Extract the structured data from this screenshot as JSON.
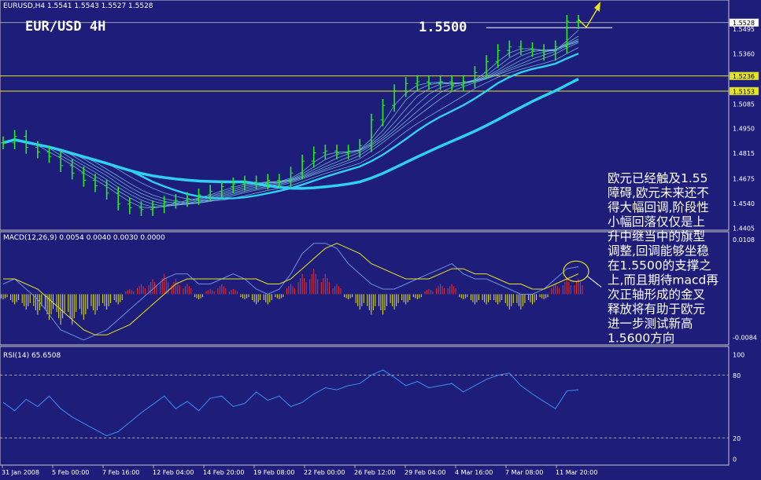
{
  "chart_data": [
    {
      "type": "line",
      "panel": "price",
      "header": "EURUSD,H4  1.5541 1.5543 1.5527 1.5528",
      "title": "EUR/USD 4H",
      "level_label": "1.5500",
      "y_ticks": [
        "1.5528",
        "1.5495",
        "1.5360",
        "1.5236",
        "1.5153",
        "1.5085",
        "1.4950",
        "1.4815",
        "1.4675",
        "1.4540",
        "1.4405"
      ],
      "highlighted_levels": [
        1.5236,
        1.5153
      ],
      "current_price_label": "1.5528",
      "ylim": [
        1.4405,
        1.56
      ],
      "x_ticks": [
        "31 Jan 2008",
        "5 Feb 00:00",
        "7 Feb 16:00",
        "12 Feb 04:00",
        "14 Feb 20:00",
        "19 Feb 08:00",
        "22 Feb 00:00",
        "26 Feb 12:00",
        "29 Feb 04:00",
        "4 Mar 16:00",
        "7 Mar 08:00",
        "11 Mar 20:00"
      ],
      "series": [
        {
          "values": [
            1.487,
            1.4905,
            1.4845,
            1.482,
            1.4795,
            1.4745,
            1.4705,
            1.4665,
            1.4635,
            1.4595,
            1.4535,
            1.4515,
            1.4505,
            1.452,
            1.4545,
            1.4555,
            1.4565,
            1.4585,
            1.4605,
            1.463,
            1.4645,
            1.4655,
            1.465,
            1.4665,
            1.466,
            1.4705,
            1.477,
            1.4815,
            1.4825,
            1.4815,
            1.4825,
            1.4855,
            1.4995,
            1.5075,
            1.5155,
            1.5195,
            1.5205,
            1.5195,
            1.5205,
            1.5185,
            1.5205,
            1.5255,
            1.5315,
            1.5375,
            1.5395,
            1.5385,
            1.5375,
            1.5355,
            1.5395,
            1.5535,
            1.5528
          ]
        }
      ],
      "annotation": "欧元已经触及1.55障碍,欧元未来还不得大幅回调,阶段性小幅回落仅仅是上升中继当中的旗型调整,回调能够坐稳在1.5500的支撑之上,而且期待macd再次正轴形成的金叉释放将有助于欧元进一步测试新高1.5600方向",
      "annotation_lines": [
        "欧元已经触及1.55",
        "障碍,欧元未来还不",
        "得大幅回调,阶段性",
        "小幅回落仅仅是上",
        "升中继当中的旗型",
        "调整,回调能够坐稳",
        "在1.5500的支撑之",
        "上,而且期待macd再",
        "次正轴形成的金叉",
        "释放将有助于欧元",
        "进一步测试新高",
        "1.5600方向"
      ]
    },
    {
      "type": "bar",
      "panel": "macd",
      "header": "MACD(12,26,9) 0.0054 0.0040 0.0030 0.0000",
      "y_ticks": [
        "0.0108",
        "-0.0084"
      ],
      "histogram": [
        -0.001,
        -0.002,
        -0.003,
        -0.004,
        -0.005,
        -0.006,
        -0.006,
        -0.005,
        -0.004,
        -0.003,
        -0.002,
        0.001,
        0.002,
        0.003,
        0.004,
        0.003,
        0.002,
        -0.001,
        0.001,
        0.002,
        0.001,
        -0.001,
        -0.002,
        -0.002,
        -0.001,
        0.002,
        0.004,
        0.005,
        0.004,
        0.002,
        -0.001,
        -0.003,
        -0.004,
        -0.004,
        -0.003,
        -0.002,
        -0.001,
        0.001,
        0.002,
        0.002,
        -0.001,
        -0.002,
        -0.002,
        -0.002,
        -0.003,
        -0.003,
        -0.002,
        -0.001,
        0.002,
        0.003,
        0.003
      ],
      "macd_line": [
        0.002,
        0.003,
        0.001,
        -0.001,
        -0.004,
        -0.007,
        -0.008,
        -0.009,
        -0.008,
        -0.007,
        -0.005,
        -0.003,
        -0.001,
        0.001,
        0.003,
        0.004,
        0.004,
        0.002,
        0.002,
        0.003,
        0.004,
        0.003,
        0.001,
        0.0,
        0.001,
        0.004,
        0.008,
        0.01,
        0.01,
        0.009,
        0.006,
        0.004,
        0.002,
        0.001,
        0.001,
        0.002,
        0.003,
        0.004,
        0.005,
        0.006,
        0.004,
        0.003,
        0.003,
        0.002,
        0.001,
        0.0,
        0.0,
        0.001,
        0.003,
        0.005,
        0.0054
      ],
      "signal_line": [
        0.003,
        0.003,
        0.002,
        0.001,
        -0.001,
        -0.003,
        -0.005,
        -0.007,
        -0.008,
        -0.008,
        -0.007,
        -0.006,
        -0.004,
        -0.002,
        0.0,
        0.002,
        0.003,
        0.003,
        0.003,
        0.003,
        0.003,
        0.003,
        0.003,
        0.002,
        0.002,
        0.003,
        0.005,
        0.007,
        0.009,
        0.01,
        0.009,
        0.008,
        0.006,
        0.005,
        0.004,
        0.003,
        0.003,
        0.003,
        0.004,
        0.005,
        0.005,
        0.004,
        0.004,
        0.003,
        0.002,
        0.002,
        0.001,
        0.001,
        0.002,
        0.003,
        0.004
      ],
      "ylim": [
        -0.0095,
        0.0115
      ]
    },
    {
      "type": "line",
      "panel": "rsi",
      "header": "RSI(14) 65.6508",
      "y_ticks": [
        "100",
        "80",
        "20",
        "0"
      ],
      "levels": [
        80,
        20
      ],
      "ylim": [
        0,
        100
      ],
      "values": [
        54,
        46,
        57,
        50,
        60,
        48,
        40,
        34,
        28,
        22,
        26,
        35,
        44,
        52,
        60,
        48,
        55,
        46,
        58,
        60,
        50,
        53,
        64,
        56,
        60,
        50,
        54,
        62,
        68,
        66,
        70,
        72,
        80,
        85,
        78,
        70,
        74,
        68,
        70,
        72,
        64,
        70,
        76,
        80,
        82,
        70,
        62,
        55,
        48,
        65,
        66
      ]
    }
  ]
}
